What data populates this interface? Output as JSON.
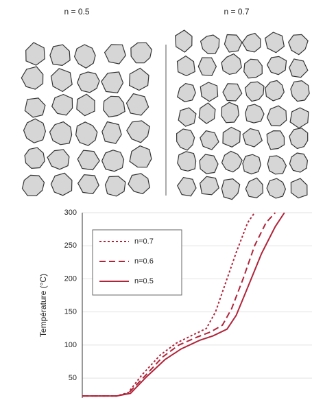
{
  "panels": {
    "left_label": "n = 0.5",
    "right_label": "n = 0.7"
  },
  "chart_data": {
    "type": "line",
    "ylabel": "Température (°C)",
    "xlim": [
      0,
      100
    ],
    "ylim": [
      20,
      300
    ],
    "yticks": [
      50,
      100,
      150,
      200,
      250,
      300
    ],
    "grid": true,
    "legend": "upper left",
    "series": [
      {
        "name": "n=0.7",
        "color": "#b0243a",
        "style": "dotted",
        "x": [
          0,
          15,
          20,
          26,
          34,
          41,
          48,
          54,
          58,
          62,
          67,
          72,
          75
        ],
        "values": [
          23,
          23,
          28,
          55,
          85,
          103,
          115,
          125,
          150,
          190,
          240,
          285,
          300
        ]
      },
      {
        "name": "n=0.6",
        "color": "#b0243a",
        "style": "dashed",
        "x": [
          0,
          15,
          20,
          27,
          35,
          42,
          50,
          56,
          61,
          65,
          70,
          75,
          80,
          84
        ],
        "values": [
          23,
          23,
          27,
          52,
          82,
          100,
          112,
          120,
          130,
          155,
          200,
          250,
          285,
          300
        ]
      },
      {
        "name": "n=0.5",
        "color": "#b0243a",
        "style": "solid",
        "x": [
          0,
          15,
          21,
          28,
          36,
          43,
          51,
          57,
          63,
          67,
          72,
          78,
          84,
          88
        ],
        "values": [
          23,
          23,
          27,
          52,
          78,
          94,
          107,
          114,
          124,
          145,
          187,
          238,
          279,
          300
        ]
      }
    ]
  }
}
